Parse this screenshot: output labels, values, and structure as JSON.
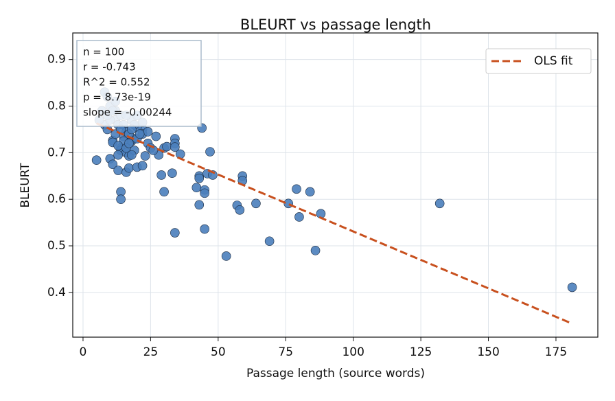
{
  "chart_data": {
    "type": "scatter",
    "title": "BLEURT vs passage length",
    "xlabel": "Passage length (source words)",
    "ylabel": "BLEURT",
    "xlim": [
      -3.8,
      190.5
    ],
    "ylim": [
      0.304,
      0.957
    ],
    "xticks": [
      0,
      25,
      50,
      75,
      100,
      125,
      150,
      175
    ],
    "yticks": [
      0.4,
      0.5,
      0.6,
      0.7,
      0.8,
      0.9
    ],
    "grid": true,
    "legend": "upper right",
    "annotations": [
      "n = 100",
      "r = -0.743",
      "R^2 = 0.552",
      "p = 8.73e-19",
      "slope = -0.00244"
    ],
    "series": [
      {
        "color": "#4a7ebb",
        "x": [
          5,
          8,
          10,
          11,
          11,
          11,
          13,
          14,
          14,
          14,
          14,
          15,
          16,
          16,
          17,
          17,
          18,
          19,
          20,
          20,
          22,
          22,
          22,
          23,
          24,
          27,
          28,
          29,
          30,
          30,
          31,
          33,
          34,
          34,
          34,
          34,
          36,
          42,
          43,
          43,
          43,
          44,
          45,
          45,
          45,
          46,
          47,
          48,
          53,
          57,
          58,
          59,
          59,
          64,
          69,
          76,
          79,
          80,
          84,
          86,
          88,
          132,
          181,
          8,
          9,
          10,
          12,
          12,
          13,
          15,
          16,
          17,
          18,
          20,
          12,
          14,
          16,
          19,
          10,
          7,
          9,
          21,
          18,
          15,
          13,
          16,
          17,
          19,
          24,
          25,
          12,
          9,
          6,
          11,
          14,
          20,
          22,
          18,
          26,
          13
        ],
        "values": [
          0.684,
          0.76,
          0.687,
          0.726,
          0.722,
          0.675,
          0.662,
          0.616,
          0.6,
          0.71,
          0.705,
          0.735,
          0.658,
          0.7,
          0.667,
          0.693,
          0.725,
          0.73,
          0.669,
          0.73,
          0.672,
          0.75,
          0.74,
          0.693,
          0.745,
          0.735,
          0.695,
          0.652,
          0.616,
          0.71,
          0.713,
          0.656,
          0.73,
          0.72,
          0.712,
          0.528,
          0.697,
          0.625,
          0.65,
          0.645,
          0.588,
          0.753,
          0.62,
          0.613,
          0.536,
          0.655,
          0.702,
          0.652,
          0.478,
          0.587,
          0.577,
          0.65,
          0.64,
          0.591,
          0.51,
          0.591,
          0.622,
          0.562,
          0.616,
          0.49,
          0.569,
          0.591,
          0.411,
          0.83,
          0.82,
          0.8,
          0.79,
          0.77,
          0.76,
          0.76,
          0.745,
          0.74,
          0.77,
          0.755,
          0.81,
          0.78,
          0.78,
          0.76,
          0.77,
          0.79,
          0.78,
          0.74,
          0.75,
          0.725,
          0.715,
          0.71,
          0.72,
          0.705,
          0.72,
          0.71,
          0.74,
          0.75,
          0.77,
          0.79,
          0.75,
          0.78,
          0.765,
          0.695,
          0.705,
          0.695
        ]
      },
      {
        "name": "OLS fit",
        "color": "#c8501e",
        "style": "dashed",
        "x": [
          5,
          181
        ],
        "values": [
          0.763,
          0.333
        ]
      }
    ]
  }
}
